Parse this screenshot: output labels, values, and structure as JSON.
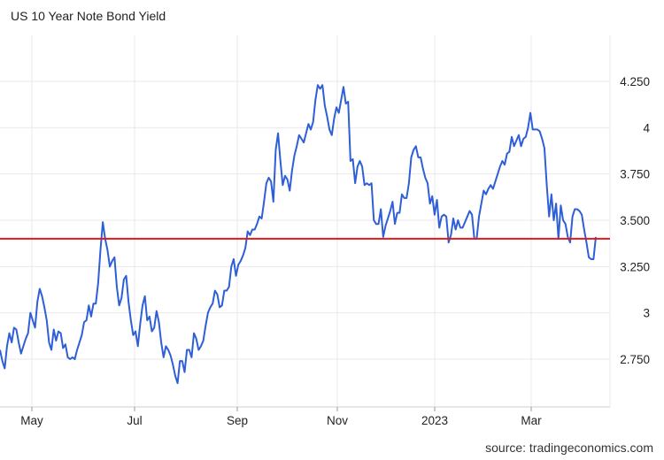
{
  "chart_data": {
    "type": "line",
    "title": "US 10 Year Note Bond Yield",
    "source": "source: tradingeconomics.com",
    "xlabel": "",
    "ylabel": "",
    "ylim": [
      2.54,
      4.5
    ],
    "yticks": [
      "4.250",
      "4",
      "3.750",
      "3.500",
      "3.250",
      "3",
      "2.750"
    ],
    "xticks": [
      "May",
      "Jul",
      "Sep",
      "Nov",
      "2023",
      "Mar"
    ],
    "grid": true,
    "legend": "none",
    "colors": {
      "line": "#2f5fd6",
      "reference_line": "#e01b1b",
      "grid": "#e9e9e9"
    },
    "reference_line": {
      "value": 3.4
    },
    "series": [
      {
        "name": "",
        "values": [
          2.8,
          2.74,
          2.7,
          2.82,
          2.89,
          2.84,
          2.92,
          2.91,
          2.84,
          2.78,
          2.82,
          2.86,
          2.89,
          3.0,
          2.96,
          2.92,
          3.06,
          3.13,
          3.09,
          3.03,
          2.96,
          2.84,
          2.8,
          2.91,
          2.85,
          2.9,
          2.89,
          2.81,
          2.83,
          2.76,
          2.75,
          2.76,
          2.75,
          2.8,
          2.84,
          2.88,
          2.95,
          2.96,
          3.04,
          2.98,
          3.05,
          3.05,
          3.16,
          3.34,
          3.49,
          3.4,
          3.34,
          3.25,
          3.28,
          3.3,
          3.14,
          3.04,
          3.08,
          3.18,
          3.2,
          3.06,
          2.96,
          2.88,
          2.9,
          2.82,
          2.94,
          3.04,
          3.09,
          2.96,
          2.98,
          2.9,
          2.92,
          3.01,
          2.95,
          2.84,
          2.76,
          2.82,
          2.8,
          2.77,
          2.72,
          2.66,
          2.62,
          2.74,
          2.74,
          2.68,
          2.8,
          2.8,
          2.76,
          2.89,
          2.86,
          2.8,
          2.82,
          2.85,
          2.93,
          3.0,
          3.03,
          3.05,
          3.12,
          3.1,
          3.03,
          3.04,
          3.12,
          3.12,
          3.14,
          3.25,
          3.29,
          3.2,
          3.26,
          3.28,
          3.31,
          3.35,
          3.44,
          3.42,
          3.45,
          3.45,
          3.48,
          3.52,
          3.51,
          3.6,
          3.7,
          3.73,
          3.71,
          3.6,
          3.88,
          3.97,
          3.82,
          3.69,
          3.74,
          3.72,
          3.66,
          3.77,
          3.85,
          3.9,
          3.96,
          3.94,
          3.92,
          3.97,
          4.02,
          3.99,
          4.03,
          4.15,
          4.23,
          4.21,
          4.23,
          4.12,
          4.06,
          3.99,
          3.96,
          4.05,
          4.11,
          4.08,
          4.15,
          4.22,
          4.13,
          4.14,
          3.82,
          3.83,
          3.7,
          3.79,
          3.82,
          3.79,
          3.69,
          3.7,
          3.69,
          3.7,
          3.5,
          3.48,
          3.48,
          3.56,
          3.41,
          3.47,
          3.51,
          3.55,
          3.6,
          3.48,
          3.54,
          3.54,
          3.64,
          3.62,
          3.62,
          3.7,
          3.84,
          3.88,
          3.9,
          3.84,
          3.84,
          3.78,
          3.73,
          3.7,
          3.59,
          3.63,
          3.53,
          3.61,
          3.46,
          3.52,
          3.53,
          3.52,
          3.38,
          3.42,
          3.51,
          3.45,
          3.5,
          3.46,
          3.46,
          3.49,
          3.52,
          3.55,
          3.53,
          3.4,
          3.4,
          3.52,
          3.59,
          3.66,
          3.64,
          3.67,
          3.69,
          3.67,
          3.71,
          3.75,
          3.79,
          3.82,
          3.8,
          3.86,
          3.87,
          3.95,
          3.9,
          3.93,
          3.96,
          3.9,
          3.94,
          3.95,
          4.0,
          4.08,
          3.99,
          3.99,
          3.99,
          3.98,
          3.94,
          3.89,
          3.69,
          3.52,
          3.64,
          3.5,
          3.59,
          3.4,
          3.58,
          3.5,
          3.48,
          3.41,
          3.38,
          3.52,
          3.56,
          3.56,
          3.55,
          3.53,
          3.45,
          3.38,
          3.3,
          3.29,
          3.29,
          3.41
        ]
      }
    ]
  }
}
